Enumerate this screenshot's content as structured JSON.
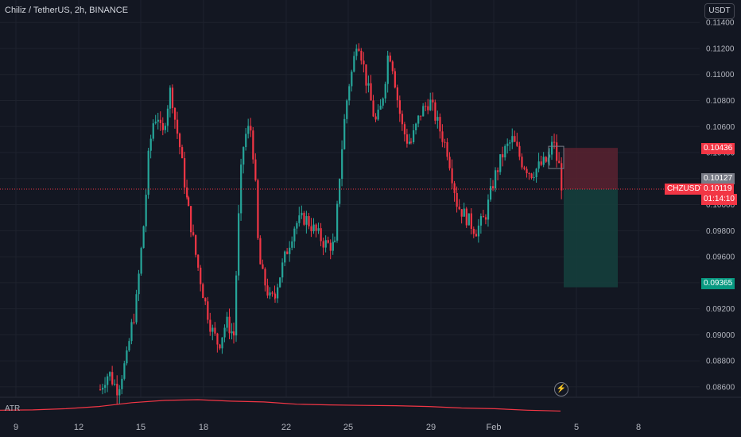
{
  "header": {
    "title": "Chiliz / TetherUS, 2h, BINANCE",
    "currency_button": "USDT"
  },
  "indicator": {
    "name": "ATR"
  },
  "price_tags": {
    "symbol": "CHZUSDT",
    "current_price": "0.10119",
    "countdown": "01:14:10",
    "price_grey": "0.10127",
    "stop_price": "0.10436",
    "target_price": "0.09365"
  },
  "colors": {
    "up": "#26a69a",
    "down": "#f23645",
    "stop_zone": "#5b2230",
    "target_zone": "#153e3c",
    "grid": "#1e222d",
    "atr_line": "#f23645"
  },
  "icons": {
    "flash": "lightning-icon"
  },
  "chart_data": {
    "type": "candlestick",
    "title": "Chiliz / TetherUS, 2h, BINANCE",
    "ylim": [
      0.0852,
      0.1156
    ],
    "y_ticks": [
      "0.08600",
      "0.08800",
      "0.09000",
      "0.09200",
      "0.09400",
      "0.09600",
      "0.09800",
      "0.10000",
      "0.10200",
      "0.10400",
      "0.10600",
      "0.10800",
      "0.11000",
      "0.11200",
      "0.11400"
    ],
    "x_ticks": [
      "9",
      "12",
      "15",
      "18",
      "22",
      "25",
      "29",
      "Feb",
      "5",
      "8"
    ],
    "close_path": [
      [
        0.0858,
        0.0866,
        0.0871,
        0.0863,
        0.0858,
        0.0871,
        0.0882,
        0.0905,
        0.092,
        0.0955,
        0.099,
        0.104,
        0.1063,
        0.107,
        0.105,
        0.1072,
        0.109,
        0.1064,
        0.1045,
        0.102,
        0.0995
      ],
      [
        0.0995,
        0.096,
        0.093,
        0.0905,
        0.0892,
        0.091,
        0.09
      ],
      [
        0.09,
        0.098,
        0.104,
        0.1055,
        0.106,
        0.103,
        0.096,
        0.0945,
        0.0935,
        0.0925,
        0.0933
      ],
      [
        0.0933,
        0.096,
        0.0985,
        0.099,
        0.098,
        0.097,
        0.0968
      ],
      [
        0.0968,
        0.102,
        0.106,
        0.109,
        0.1105,
        0.113,
        0.1114,
        0.1095,
        0.108,
        0.1063,
        0.107,
        0.109,
        0.112,
        0.1105,
        0.108,
        0.106,
        0.105,
        0.1048
      ],
      [
        0.1048,
        0.107,
        0.108,
        0.106,
        0.104,
        0.1,
        0.099,
        0.098,
        0.099,
        0.102,
        0.104,
        0.105,
        0.1033,
        0.1024,
        0.103,
        0.1035
      ],
      [
        0.1035,
        0.105,
        0.1045,
        0.1035,
        0.103,
        0.1016,
        0.1012
      ]
    ],
    "atr": [
      0.3,
      0.32,
      0.4,
      0.55,
      0.8,
      0.95,
      1.0,
      0.9,
      0.85,
      0.7,
      0.65,
      0.62,
      0.6,
      0.55,
      0.45,
      0.4,
      0.3,
      0.25
    ],
    "position": {
      "entry": 0.10119,
      "stop": 0.10436,
      "target": 0.09365
    }
  }
}
